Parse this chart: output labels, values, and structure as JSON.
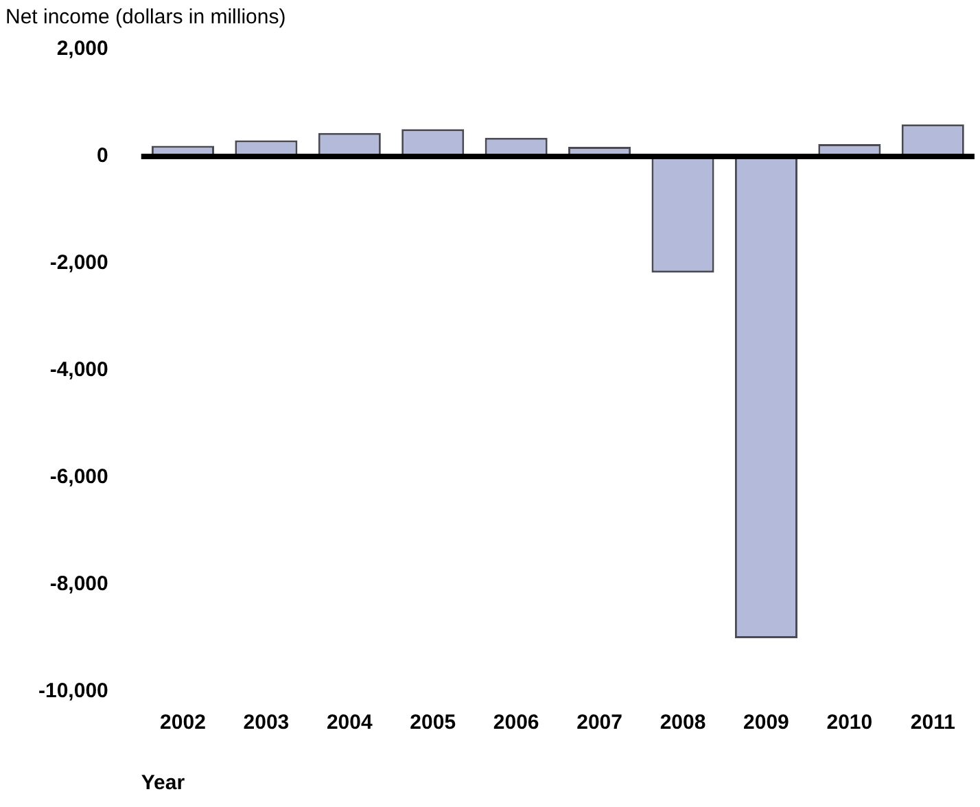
{
  "chart_data": {
    "type": "bar",
    "title": "Net income (dollars in millions)",
    "xlabel": "Year",
    "categories": [
      "2002",
      "2003",
      "2004",
      "2005",
      "2006",
      "2007",
      "2008",
      "2009",
      "2010",
      "2011"
    ],
    "values": [
      200,
      300,
      440,
      510,
      350,
      180,
      -2170,
      -9000,
      230,
      600
    ],
    "color": "#b4bad9",
    "ylim": [
      -10000,
      2000
    ],
    "yticks": [
      {
        "value": -10000,
        "label": "-10,000"
      },
      {
        "value": -8000,
        "label": "-8,000"
      },
      {
        "value": -6000,
        "label": "-6,000"
      },
      {
        "value": -4000,
        "label": "-4,000"
      },
      {
        "value": -2000,
        "label": "-2,000"
      },
      0,
      {
        "value": 2000,
        "label": "2,000"
      }
    ],
    "ref_lines": [
      {
        "axis": "y",
        "value": 0,
        "color": "#000000"
      }
    ]
  }
}
